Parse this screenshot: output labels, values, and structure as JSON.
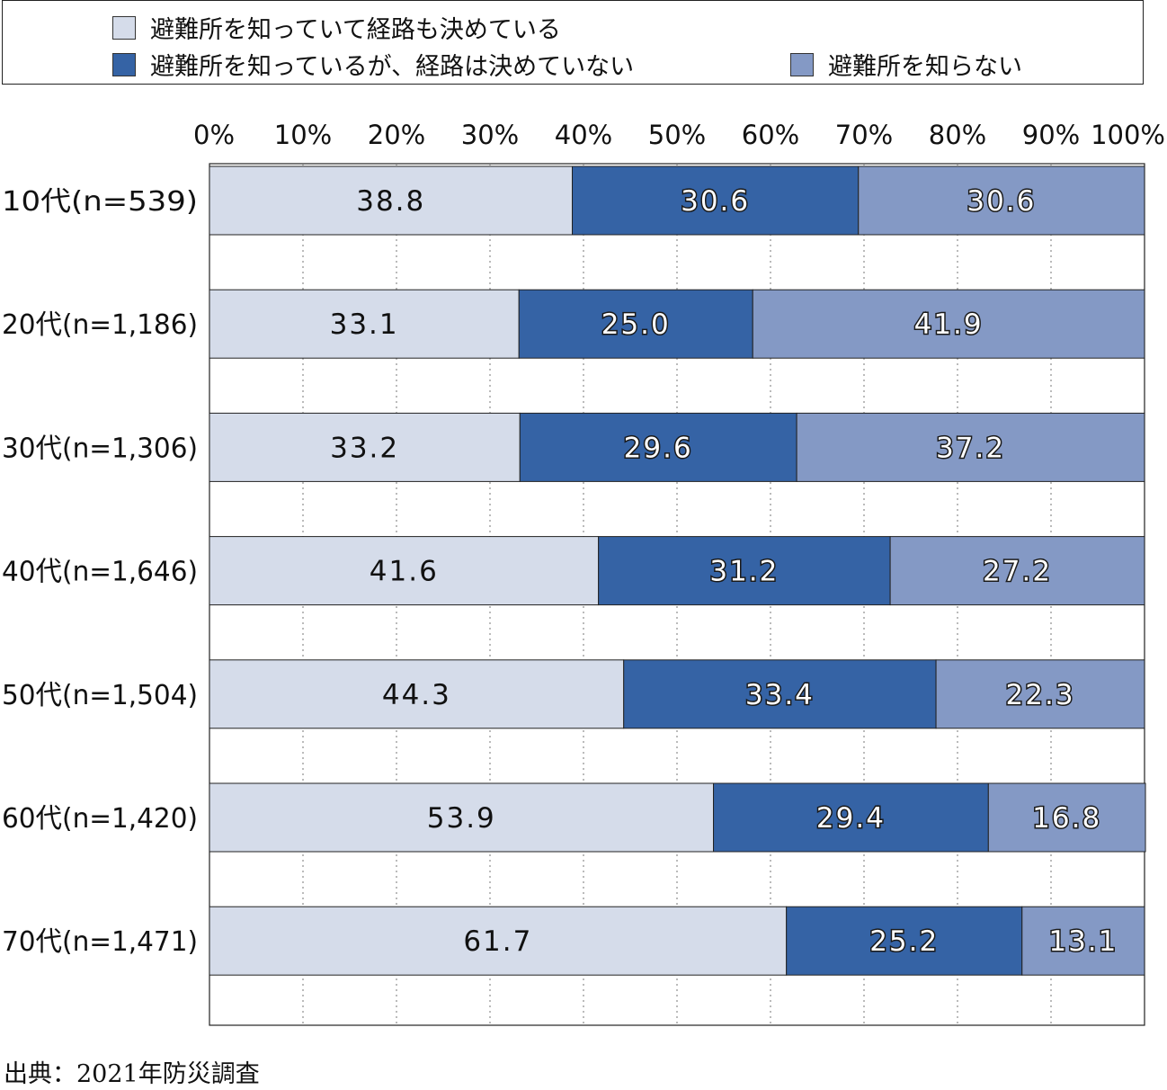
{
  "legend": {
    "items": [
      {
        "label": "避難所を知っていて経路も決めている",
        "color": "#d5dcea"
      },
      {
        "label": "避難所を知っているが、経路は決めていない",
        "color": "#3563a5"
      },
      {
        "label": "避難所を知らない",
        "color": "#8499c5"
      }
    ]
  },
  "chart_data": {
    "type": "bar",
    "orientation": "horizontal",
    "stacked": true,
    "xlim": [
      0,
      100
    ],
    "x_ticks": [
      "0%",
      "10%",
      "20%",
      "30%",
      "40%",
      "50%",
      "60%",
      "70%",
      "80%",
      "90%",
      "100%"
    ],
    "grid": true,
    "legend_position": "top",
    "categories": [
      "10代(n=539)",
      "20代(n=1,186)",
      "30代(n=1,306)",
      "40代(n=1,646)",
      "50代(n=1,504)",
      "60代(n=1,420)",
      "70代(n=1,471)"
    ],
    "series": [
      {
        "name": "避難所を知っていて経路も決めている",
        "color": "#d5dcea",
        "label_color": "#111111",
        "values": [
          38.8,
          33.1,
          33.2,
          41.6,
          44.3,
          53.9,
          61.7
        ],
        "labels": [
          "38.8",
          "33.1",
          "33.2",
          "41.6",
          "44.3",
          "53.9",
          "61.7"
        ]
      },
      {
        "name": "避難所を知っているが、経路は決めていない",
        "color": "#3563a5",
        "label_color": "#ffffff",
        "values": [
          30.6,
          25.0,
          29.6,
          31.2,
          33.4,
          29.4,
          25.2
        ],
        "labels": [
          "30.6",
          "25.0",
          "29.6",
          "31.2",
          "33.4",
          "29.4",
          "25.2"
        ]
      },
      {
        "name": "避難所を知らない",
        "color": "#8499c5",
        "label_color": "#ffffff",
        "values": [
          30.6,
          41.9,
          37.2,
          27.2,
          22.3,
          16.8,
          13.1
        ],
        "labels": [
          "30.6",
          "41.9",
          "37.2",
          "27.2",
          "22.3",
          "16.8",
          "13.1"
        ]
      }
    ]
  },
  "source": "出典：2021年防災調査"
}
